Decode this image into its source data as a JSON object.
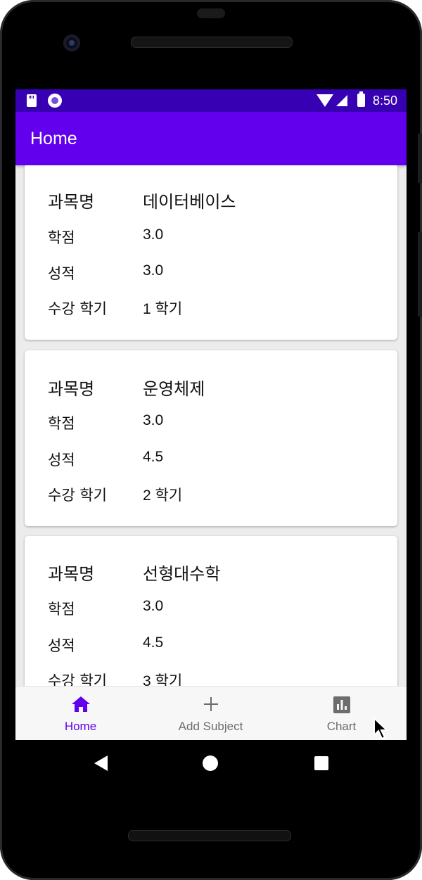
{
  "status_bar": {
    "time": "8:50",
    "background": "#3700b3"
  },
  "app_bar": {
    "title": "Home",
    "background": "#6200ee"
  },
  "labels": {
    "subject_name": "과목명",
    "credits": "학점",
    "grade": "성적",
    "semester": "수강 학기"
  },
  "subjects": [
    {
      "name": "데이터베이스",
      "credits": "3.0",
      "grade": "3.0",
      "semester": "1 학기"
    },
    {
      "name": "운영체제",
      "credits": "3.0",
      "grade": "4.5",
      "semester": "2 학기"
    },
    {
      "name": "선형대수학",
      "credits": "3.0",
      "grade": "4.5",
      "semester": "3 학기"
    }
  ],
  "bottom_nav": {
    "items": [
      {
        "label": "Home",
        "icon": "home-icon",
        "active": true
      },
      {
        "label": "Add Subject",
        "icon": "plus-icon",
        "active": false
      },
      {
        "label": "Chart",
        "icon": "bar-chart-icon",
        "active": false
      }
    ],
    "active_color": "#6200ee",
    "inactive_color": "#6d6d6d"
  }
}
